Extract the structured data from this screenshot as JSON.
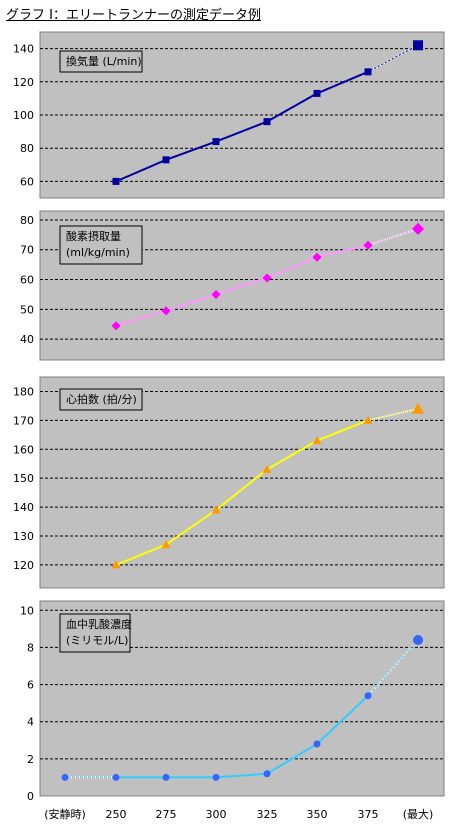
{
  "title": "グラフ Ⅰ：エリートランナーの測定データ例",
  "chart_data": [
    {
      "type": "line",
      "label": [
        "換気量 (L/min)"
      ],
      "x": [
        "250",
        "275",
        "300",
        "325",
        "350",
        "375",
        "(最大)"
      ],
      "values": [
        60,
        73,
        84,
        96,
        113,
        126,
        142
      ],
      "ylim": [
        50,
        150
      ],
      "yticks": [
        60,
        80,
        100,
        120,
        140
      ],
      "color": "#0000a0",
      "last_segment_dotted": true,
      "marker": "square",
      "grid": true
    },
    {
      "type": "line",
      "label": [
        "酸素摂取量",
        "(ml/kg/min)"
      ],
      "x": [
        "250",
        "275",
        "300",
        "325",
        "350",
        "375",
        "(最大)"
      ],
      "values": [
        44.5,
        49.5,
        55,
        60.5,
        67.5,
        71.5,
        77
      ],
      "ylim": [
        33,
        83
      ],
      "yticks": [
        40,
        50,
        60,
        70,
        80
      ],
      "color": "#ff99ff",
      "marker_color": "#ff00ff",
      "last_segment_dotted": true,
      "marker": "diamond",
      "grid": true
    },
    {
      "type": "line",
      "label": [
        "心拍数 (拍/分)"
      ],
      "x": [
        "250",
        "275",
        "300",
        "325",
        "350",
        "375",
        "(最大)"
      ],
      "values": [
        120,
        127,
        139,
        153,
        163,
        170,
        174
      ],
      "ylim": [
        112,
        185
      ],
      "yticks": [
        120,
        130,
        140,
        150,
        160,
        170,
        180
      ],
      "color": "#ffff00",
      "marker_color": "#ff9900",
      "last_segment_dotted": true,
      "marker": "triangle",
      "grid": true
    },
    {
      "type": "line",
      "label": [
        "血中乳酸濃度",
        "(ミリモル/L)"
      ],
      "x": [
        "(安静時)",
        "250",
        "275",
        "300",
        "325",
        "350",
        "375",
        "(最大)"
      ],
      "values": [
        1,
        1,
        1,
        1,
        1.2,
        2.8,
        5.4,
        8.4
      ],
      "ylim": [
        0,
        10.5
      ],
      "yticks": [
        0,
        2,
        4,
        6,
        8,
        10
      ],
      "color": "#33ccff",
      "marker_color": "#3366ff",
      "first_segment_dotted": true,
      "last_segment_dotted": true,
      "marker": "circle",
      "grid": true
    }
  ],
  "x_axis_labels": [
    "(安静時)",
    "250",
    "275",
    "300",
    "325",
    "350",
    "375",
    "(最大)"
  ]
}
